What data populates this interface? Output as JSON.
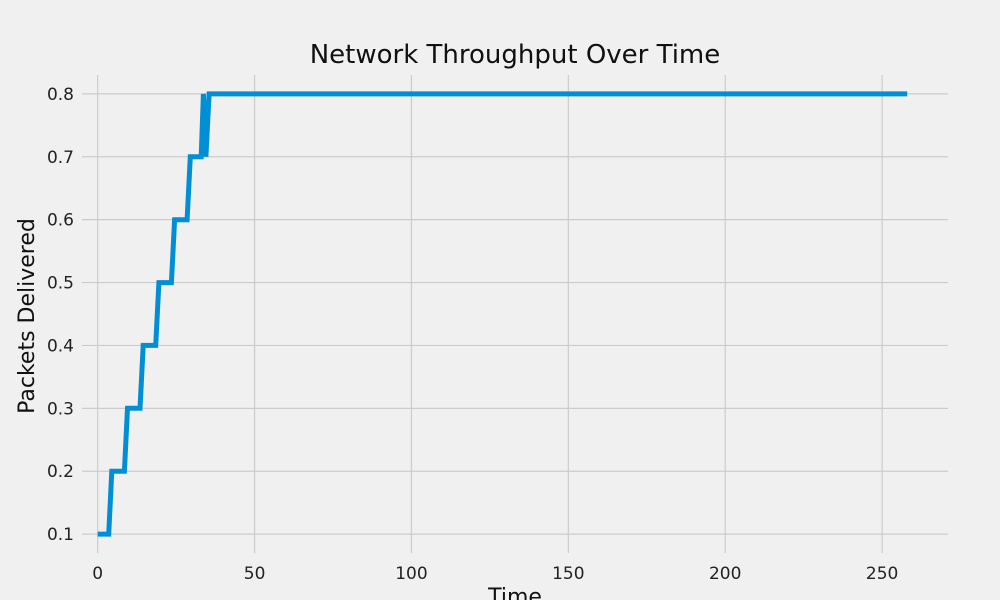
{
  "chart_data": {
    "type": "line",
    "title": "Network Throughput Over Time",
    "xlabel": "Time",
    "ylabel": "Packets Delivered",
    "xlim": [
      -5,
      271
    ],
    "ylim": [
      0.07,
      0.83
    ],
    "xticks": [
      0,
      50,
      100,
      150,
      200,
      250
    ],
    "yticks": [
      0.1,
      0.2,
      0.3,
      0.4,
      0.5,
      0.6,
      0.7,
      0.8
    ],
    "xtick_labels": [
      "0",
      "50",
      "100",
      "150",
      "200",
      "250"
    ],
    "ytick_labels": [
      "0.1",
      "0.2",
      "0.3",
      "0.4",
      "0.5",
      "0.6",
      "0.7",
      "0.8"
    ],
    "grid": true,
    "legend": false,
    "series": [
      {
        "color": "#008fd5",
        "x": [
          0,
          3.5,
          4.5,
          8.5,
          9.5,
          13.5,
          14.5,
          18.5,
          19.5,
          23.5,
          24.5,
          28.5,
          29.5,
          33,
          33.7,
          34.5,
          35.5,
          258
        ],
        "y": [
          0.1,
          0.1,
          0.2,
          0.2,
          0.3,
          0.3,
          0.4,
          0.4,
          0.5,
          0.5,
          0.6,
          0.6,
          0.7,
          0.7,
          0.8,
          0.7,
          0.8,
          0.8
        ]
      }
    ]
  }
}
